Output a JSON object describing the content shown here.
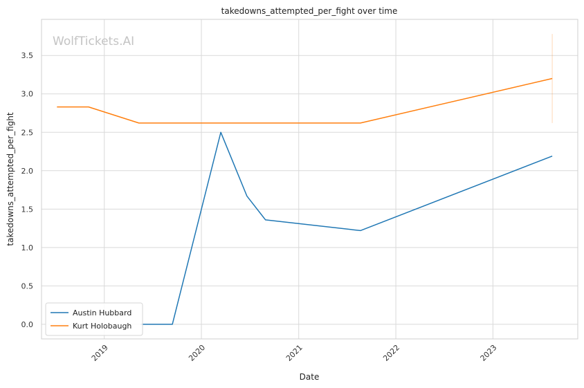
{
  "chart_data": {
    "type": "line",
    "title": "takedowns_attempted_per_fight over time",
    "xlabel": "Date",
    "ylabel": "takedowns_attempted_per_fight",
    "watermark": "WolfTickets.AI",
    "xlim": [
      "2018-05-10",
      "2023-11-16"
    ],
    "ylim": [
      -0.19,
      3.97
    ],
    "x_ticks": [
      "2019-01-01",
      "2020-01-01",
      "2021-01-01",
      "2022-01-01",
      "2023-01-01"
    ],
    "x_tick_labels": [
      "2019",
      "2020",
      "2021",
      "2022",
      "2023"
    ],
    "y_ticks": [
      0.0,
      0.5,
      1.0,
      1.5,
      2.0,
      2.5,
      3.0,
      3.5
    ],
    "y_tick_labels": [
      "0.0",
      "0.5",
      "1.0",
      "1.5",
      "2.0",
      "2.5",
      "3.0",
      "3.5"
    ],
    "grid": true,
    "legend_position": "lower-left",
    "series": [
      {
        "name": "Austin Hubbard",
        "color": "#1f77b4",
        "points": [
          {
            "x": "2019-05-18",
            "y": 0.0
          },
          {
            "x": "2019-09-14",
            "y": 0.0
          },
          {
            "x": "2020-03-14",
            "y": 2.5
          },
          {
            "x": "2020-06-20",
            "y": 1.67
          },
          {
            "x": "2020-08-29",
            "y": 1.36
          },
          {
            "x": "2021-08-21",
            "y": 1.22
          },
          {
            "x": "2023-08-12",
            "y": 2.19
          }
        ]
      },
      {
        "name": "Kurt Holobaugh",
        "color": "#ff7f0e",
        "points": [
          {
            "x": "2018-07-07",
            "y": 2.83
          },
          {
            "x": "2018-11-03",
            "y": 2.83
          },
          {
            "x": "2019-05-11",
            "y": 2.62
          },
          {
            "x": "2021-08-21",
            "y": 2.62
          },
          {
            "x": "2023-08-12",
            "y": 3.2
          }
        ],
        "band": {
          "x": "2023-08-12",
          "low": 2.62,
          "high": 3.78
        }
      }
    ]
  }
}
